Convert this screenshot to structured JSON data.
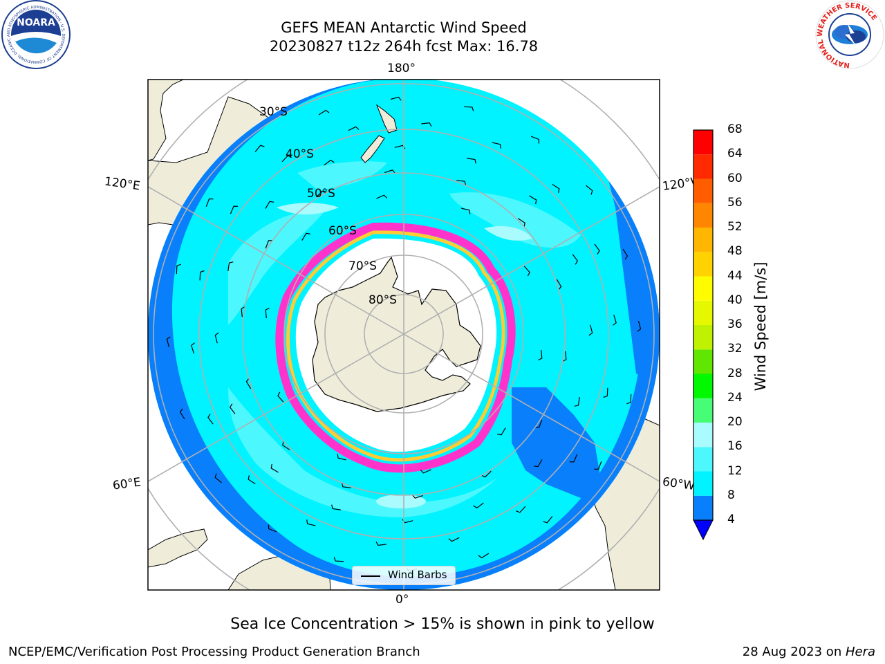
{
  "title": {
    "line1": "GEFS MEAN Antarctic Wind Speed",
    "line2": "20230827 t12z 264h fcst   Max: 16.78"
  },
  "logos": {
    "left": {
      "name": "NOARA",
      "ring_text": "NATIONAL OCEANIC AND ATMOSPHERIC ADMINISTRATION · U.S. DEPARTMENT OF COMMERCE"
    },
    "right": {
      "ring_text": "NATIONAL WEATHER SERVICE"
    }
  },
  "map": {
    "projection": "south-polar-stereographic",
    "lon_labels": {
      "top": "180°",
      "bottom": "0°",
      "left_upper": "120°E",
      "left_lower": "60°E",
      "right_upper": "120°W",
      "right_lower": "60°W"
    },
    "lat_labels": [
      "30°S",
      "40°S",
      "50°S",
      "60°S",
      "70°S",
      "80°S"
    ],
    "colors": {
      "land": "#efedda",
      "ocean_outer": "#0a7ffb",
      "ocean_mid": "#00f3ff",
      "ocean_light": "#4cf7fd",
      "ice": "#ffffff",
      "sea_ice_edge_pink": "#ff33cc",
      "sea_ice_edge_yellow": "#ffcc33"
    }
  },
  "legend": {
    "wind_barbs": "Wind Barbs"
  },
  "colorbar": {
    "label": "Wind Speed [m/s]",
    "ticks": [
      "68",
      "64",
      "60",
      "56",
      "52",
      "48",
      "44",
      "40",
      "36",
      "32",
      "28",
      "24",
      "20",
      "16",
      "12",
      "8",
      "4"
    ],
    "colors": [
      "#0000ff",
      "#0a7ffb",
      "#00f3ff",
      "#4cf7fd",
      "#a9fbfd",
      "#48fd76",
      "#00f800",
      "#60e600",
      "#bff100",
      "#e5f800",
      "#fffc00",
      "#ffd200",
      "#ffb600",
      "#ff8600",
      "#ff5d00",
      "#ff2a00",
      "#ff0000"
    ]
  },
  "note": "Sea Ice Concentration > 15% is shown in pink to yellow",
  "credit": {
    "left": "NCEP/EMC/Verification Post Processing Product Generation Branch",
    "right_date": "28 Aug 2023 on ",
    "right_host": "Hera"
  }
}
